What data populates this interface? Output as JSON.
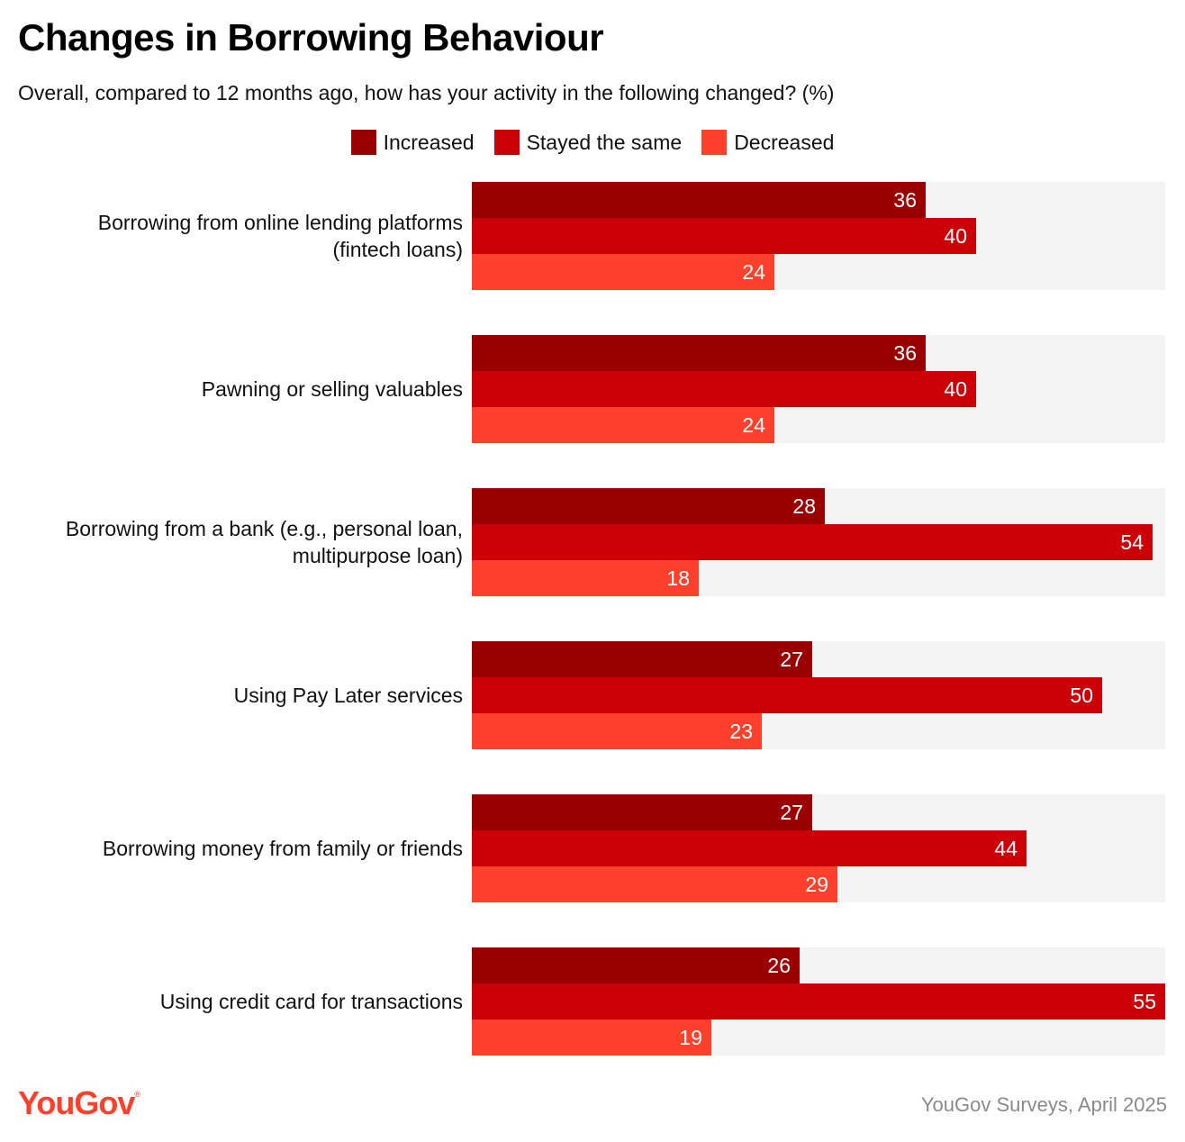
{
  "header": {
    "title": "Changes in Borrowing Behaviour",
    "subtitle": "Overall, compared to 12 months ago, how has your activity in the following changed? (%)"
  },
  "footer": {
    "logo": "YouGov",
    "logo_mark": "®",
    "source": "YouGov Surveys, April 2025"
  },
  "colors": {
    "increased": "#9B0000",
    "stayed": "#CC0007",
    "decreased": "#FF412C",
    "track": "#F3F3F3",
    "brand": "#FF412C"
  },
  "chart_data": {
    "type": "bar",
    "orientation": "horizontal",
    "xlim": [
      0,
      55
    ],
    "legend_position": "top-center",
    "grid": false,
    "categories": [
      "Borrowing from online lending platforms (fintech loans)",
      "Pawning or selling valuables",
      "Borrowing from a bank (e.g., personal loan, multipurpose loan)",
      "Using Pay Later services",
      "Borrowing money from family or friends",
      "Using credit card for transactions"
    ],
    "category_lines": [
      [
        "Borrowing from online lending platforms",
        "(fintech loans)"
      ],
      [
        "Pawning or selling valuables"
      ],
      [
        "Borrowing from a bank (e.g., personal loan,",
        "multipurpose loan)"
      ],
      [
        "Using Pay Later services"
      ],
      [
        "Borrowing money from family or friends"
      ],
      [
        "Using credit card for transactions"
      ]
    ],
    "series": [
      {
        "name": "Increased",
        "color": "#9B0000",
        "values": [
          36,
          36,
          28,
          27,
          27,
          26
        ]
      },
      {
        "name": "Stayed the same",
        "color": "#CC0007",
        "values": [
          40,
          40,
          54,
          50,
          44,
          55
        ]
      },
      {
        "name": "Decreased",
        "color": "#FF412C",
        "values": [
          24,
          24,
          18,
          23,
          29,
          19
        ]
      }
    ]
  }
}
